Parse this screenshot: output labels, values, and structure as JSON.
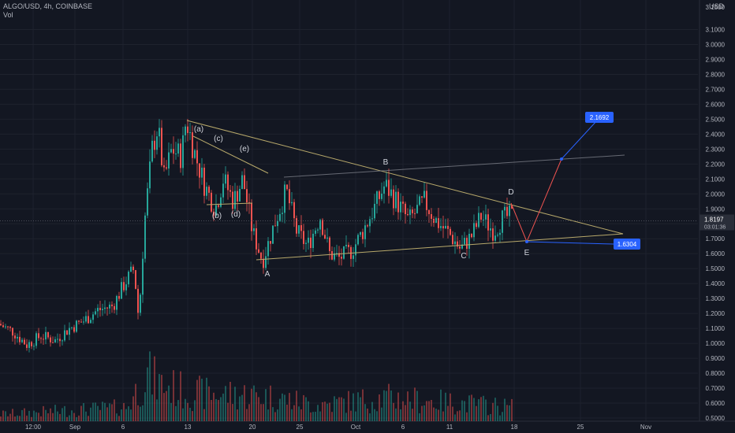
{
  "header": {
    "symbol_line": "ALGO/USD, 4h, COINBASE",
    "volume_label": "Vol"
  },
  "axis": {
    "currency": "USD"
  },
  "colors": {
    "background": "#131722",
    "bull": "#26a69a",
    "bear": "#ef5350",
    "trendline": "#b8a96b",
    "grid": "#1e222d",
    "target_box": "#2962ff",
    "target_up_line": "#2962ff",
    "projection_line": "#ef5350",
    "last_price": "#2a2e39"
  },
  "last_price": {
    "value": "1.8197",
    "countdown": "03:01:36"
  },
  "targets": [
    {
      "label": "2.1692",
      "value": 2.1692
    },
    {
      "label": "1.6304",
      "value": 1.6304
    }
  ],
  "chart_data": {
    "type": "candlestick",
    "y_ticks": [
      "3.1500",
      "3.1000",
      "3.0000",
      "2.9000",
      "2.8000",
      "2.7000",
      "2.6000",
      "2.5000",
      "2.4000",
      "2.3000",
      "2.2000",
      "2.1000",
      "2.0000",
      "1.9000",
      "1.8000",
      "1.7000",
      "1.6000",
      "1.5000",
      "1.4000",
      "1.3000",
      "1.2000",
      "1.1000",
      "1.0000",
      "0.9000",
      "0.8000",
      "0.7000",
      "0.6000",
      "0.5000"
    ],
    "x_ticks": [
      "12:00",
      "Sep",
      "6",
      "13",
      "20",
      "25",
      "Oct",
      "6",
      "11",
      "18",
      "25",
      "Nov"
    ],
    "ylim": [
      0.5,
      3.15
    ],
    "wave_labels": [
      "(a)",
      "(b)",
      "(c)",
      "(d)",
      "(e)",
      "A",
      "B",
      "C",
      "D",
      "E"
    ],
    "price_path": [
      {
        "t": 0,
        "v": 1.13
      },
      {
        "t": 18,
        "v": 1.08
      },
      {
        "t": 36,
        "v": 0.99
      },
      {
        "t": 54,
        "v": 1.05
      },
      {
        "t": 72,
        "v": 1.02
      },
      {
        "t": 90,
        "v": 1.1
      },
      {
        "t": 108,
        "v": 1.15
      },
      {
        "t": 125,
        "v": 1.22
      },
      {
        "t": 145,
        "v": 1.25
      },
      {
        "t": 160,
        "v": 1.4
      },
      {
        "t": 172,
        "v": 1.5
      },
      {
        "t": 178,
        "v": 1.15
      },
      {
        "t": 185,
        "v": 1.8
      },
      {
        "t": 195,
        "v": 2.3
      },
      {
        "t": 202,
        "v": 2.45
      },
      {
        "t": 210,
        "v": 2.1
      },
      {
        "t": 220,
        "v": 2.3
      },
      {
        "t": 232,
        "v": 2.25
      },
      {
        "t": 238,
        "v": 2.5
      },
      {
        "t": 250,
        "v": 2.25
      },
      {
        "t": 262,
        "v": 2.05
      },
      {
        "t": 275,
        "v": 1.9
      },
      {
        "t": 285,
        "v": 2.1
      },
      {
        "t": 298,
        "v": 1.95
      },
      {
        "t": 310,
        "v": 2.1
      },
      {
        "t": 322,
        "v": 1.75
      },
      {
        "t": 335,
        "v": 1.55
      },
      {
        "t": 350,
        "v": 1.8
      },
      {
        "t": 365,
        "v": 2.02
      },
      {
        "t": 378,
        "v": 1.75
      },
      {
        "t": 392,
        "v": 1.65
      },
      {
        "t": 408,
        "v": 1.85
      },
      {
        "t": 420,
        "v": 1.6
      },
      {
        "t": 432,
        "v": 1.57
      },
      {
        "t": 448,
        "v": 1.62
      },
      {
        "t": 462,
        "v": 1.75
      },
      {
        "t": 478,
        "v": 1.92
      },
      {
        "t": 490,
        "v": 2.06
      },
      {
        "t": 505,
        "v": 1.95
      },
      {
        "t": 520,
        "v": 1.82
      },
      {
        "t": 540,
        "v": 1.95
      },
      {
        "t": 555,
        "v": 1.82
      },
      {
        "t": 572,
        "v": 1.73
      },
      {
        "t": 586,
        "v": 1.63
      },
      {
        "t": 600,
        "v": 1.72
      },
      {
        "t": 612,
        "v": 1.85
      },
      {
        "t": 628,
        "v": 1.75
      },
      {
        "t": 640,
        "v": 1.84
      },
      {
        "t": 648,
        "v": 1.85
      }
    ],
    "volume_peak_ratio": [
      {
        "t": 0,
        "v": 0.15
      },
      {
        "t": 160,
        "v": 0.3
      },
      {
        "t": 185,
        "v": 1.0
      },
      {
        "t": 200,
        "v": 0.8
      },
      {
        "t": 240,
        "v": 0.6
      },
      {
        "t": 330,
        "v": 0.55
      },
      {
        "t": 400,
        "v": 0.35
      },
      {
        "t": 490,
        "v": 0.5
      },
      {
        "t": 650,
        "v": 0.3
      }
    ]
  }
}
